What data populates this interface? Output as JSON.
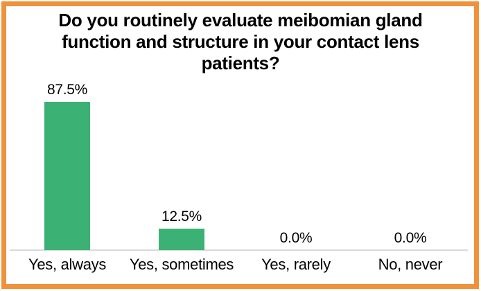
{
  "header": {
    "title_lines": [
      "Do you routinely evaluate meibomian gland",
      "function and structure in your contact lens",
      "patients?"
    ]
  },
  "chart_data": {
    "type": "bar",
    "title": "Do you routinely evaluate meibomian gland function and structure in your contact lens patients?",
    "categories": [
      "Yes, always",
      "Yes, sometimes",
      "Yes, rarely",
      "No, never"
    ],
    "values": [
      87.5,
      12.5,
      0.0,
      0.0
    ],
    "value_labels": [
      "87.5%",
      "12.5%",
      "0.0%",
      "0.0%"
    ],
    "unit": "%",
    "xlabel": "",
    "ylabel": "",
    "ylim": [
      0,
      100
    ],
    "grid": false,
    "legend": "none"
  },
  "colors": {
    "bar": "#3BB273",
    "frame_border": "#F0923B",
    "axis_line": "#D9D9D9",
    "text": "#000000",
    "background": "#FFFFFF"
  }
}
